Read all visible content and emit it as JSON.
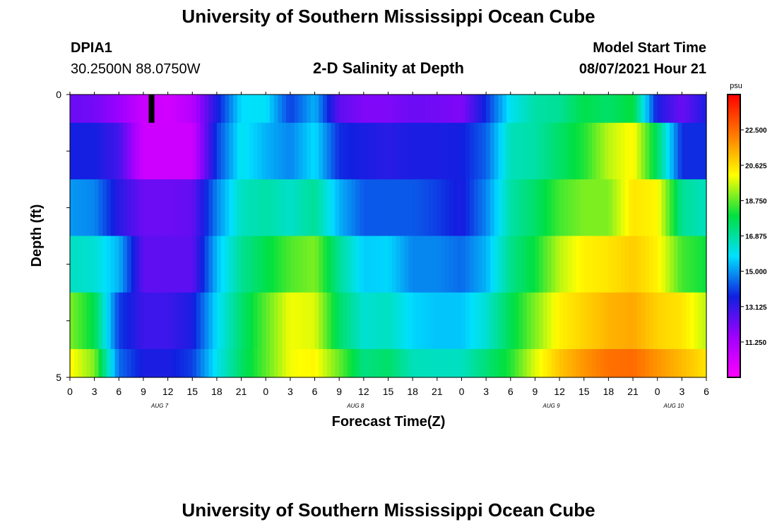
{
  "header": {
    "title": "University of Southern Mississippi Ocean Cube",
    "station_id": "DPIA1",
    "coords": "30.2500N  88.0750W",
    "plot_title": "2-D Salinity at Depth",
    "model_start_label": "Model Start Time",
    "model_start_value": "08/07/2021 Hour 21"
  },
  "footer": {
    "title": "University of Southern Mississippi Ocean Cube"
  },
  "chart_data": {
    "type": "heatmap",
    "title": "2-D Salinity at Depth",
    "xlabel": "Forecast Time(Z)",
    "ylabel": "Depth (ft)",
    "ylim": [
      0,
      5
    ],
    "y_tick_labels": [
      "0",
      "5"
    ],
    "x_tick_labels": [
      "0",
      "3",
      "6",
      "9",
      "12",
      "15",
      "18",
      "21",
      "0",
      "3",
      "6",
      "9",
      "12",
      "15",
      "18",
      "21",
      "0",
      "3",
      "6",
      "9",
      "12",
      "15",
      "18",
      "21",
      "0",
      "3",
      "6"
    ],
    "date_labels": [
      {
        "text": "AUG  7",
        "hour_index": 11
      },
      {
        "text": "AUG  8",
        "hour_index": 35
      },
      {
        "text": "AUG  9",
        "hour_index": 59
      },
      {
        "text": "AUG  10",
        "hour_index": 74
      }
    ],
    "x_range_hours": [
      0,
      78
    ],
    "depth_layers": [
      "0-0.5 ft",
      "0.5-1.5 ft",
      "1.5-2.5 ft",
      "2.5-3.5 ft",
      "3.5-4.5 ft",
      "4.5-5 ft"
    ],
    "hours": [
      0,
      3,
      6,
      9,
      12,
      15,
      18,
      21,
      24,
      27,
      30,
      33,
      36,
      39,
      42,
      45,
      48,
      51,
      54,
      57,
      60,
      63,
      66,
      69,
      72,
      75,
      78
    ],
    "salinity": [
      [
        12.3,
        12.2,
        11.6,
        10.6,
        10.4,
        11.0,
        13.5,
        15.8,
        15.9,
        14.0,
        15.3,
        12.5,
        12.0,
        12.0,
        12.3,
        12.2,
        12.0,
        13.8,
        16.0,
        16.8,
        17.0,
        17.8,
        17.5,
        18.0,
        13.5,
        12.3,
        13.5
      ],
      [
        13.6,
        13.6,
        12.9,
        10.5,
        10.5,
        10.5,
        14.0,
        16.0,
        15.3,
        14.8,
        15.8,
        13.8,
        13.5,
        13.3,
        13.5,
        13.5,
        13.6,
        14.4,
        16.6,
        16.8,
        17.5,
        18.2,
        19.5,
        20.2,
        17.5,
        13.8,
        13.8
      ],
      [
        15.0,
        14.8,
        13.3,
        12.3,
        12.3,
        12.4,
        14.8,
        16.5,
        16.8,
        16.4,
        17.0,
        15.3,
        14.3,
        14.3,
        14.3,
        14.0,
        13.5,
        14.8,
        16.8,
        17.5,
        18.5,
        19.0,
        19.0,
        20.5,
        20.2,
        17.0,
        16.5
      ],
      [
        16.5,
        16.3,
        15.3,
        12.5,
        12.5,
        12.5,
        15.4,
        17.0,
        17.8,
        18.6,
        19.0,
        17.0,
        15.6,
        15.7,
        14.8,
        14.8,
        14.5,
        15.3,
        17.1,
        18.0,
        19.5,
        20.3,
        20.5,
        20.9,
        20.3,
        18.5,
        18.0
      ],
      [
        19.0,
        17.8,
        14.0,
        13.0,
        13.0,
        13.5,
        15.8,
        17.4,
        18.7,
        20.0,
        19.8,
        17.5,
        16.3,
        16.5,
        15.7,
        15.5,
        15.5,
        16.3,
        17.7,
        19.0,
        20.3,
        20.8,
        21.3,
        21.5,
        20.8,
        20.5,
        19.5
      ],
      [
        20.2,
        19.0,
        14.5,
        13.5,
        13.5,
        14.0,
        16.0,
        17.5,
        18.7,
        20.0,
        20.2,
        18.8,
        17.2,
        17.5,
        16.6,
        16.5,
        16.5,
        17.3,
        18.2,
        19.8,
        21.0,
        21.8,
        22.4,
        22.5,
        21.8,
        21.2,
        20.5
      ]
    ],
    "missing_markers": [
      {
        "layer": 0,
        "hour": 10
      }
    ],
    "colorbar": {
      "unit_label": "psu",
      "range": [
        9.375,
        24.375
      ],
      "tick_values": [
        11.25,
        13.125,
        15.0,
        16.875,
        18.75,
        20.625,
        22.5
      ],
      "tick_labels": [
        "11.250",
        "13.125",
        "15.000",
        "16.875",
        "18.750",
        "20.625",
        "22.500"
      ],
      "colors": [
        "#ff00ff",
        "#a000ff",
        "#1020e0",
        "#00e0ff",
        "#00e040",
        "#ffff00",
        "#ff7a00",
        "#ff0000"
      ]
    }
  }
}
